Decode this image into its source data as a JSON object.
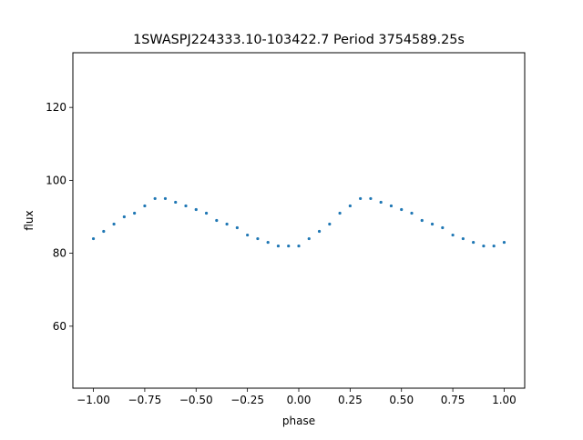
{
  "chart_data": {
    "type": "scatter",
    "title": "1SWASPJ224333.10-103422.7 Period 3754589.25s",
    "xlabel": "phase",
    "ylabel": "flux",
    "xlim": [
      -1.1,
      1.1
    ],
    "ylim": [
      43,
      135
    ],
    "x_ticks": [
      -1.0,
      -0.75,
      -0.5,
      -0.25,
      0.0,
      0.25,
      0.5,
      0.75,
      1.0
    ],
    "x_tick_labels": [
      "−1.00",
      "−0.75",
      "−0.50",
      "−0.25",
      "0.00",
      "0.25",
      "0.50",
      "0.75",
      "1.00"
    ],
    "y_ticks": [
      60,
      80,
      100,
      120
    ],
    "y_tick_labels": [
      "60",
      "80",
      "100",
      "120"
    ],
    "grid": false,
    "marker_color": "#1f77b4",
    "series": [
      {
        "x": [
          -1.0,
          -0.95,
          -0.9,
          -0.85,
          -0.8,
          -0.75,
          -0.7,
          -0.65,
          -0.6,
          -0.55,
          -0.5,
          -0.45,
          -0.4,
          -0.35,
          -0.3,
          -0.25,
          -0.2,
          -0.15,
          -0.1,
          -0.05,
          0.0,
          0.05,
          0.1,
          0.15,
          0.2,
          0.25,
          0.3,
          0.35,
          0.4,
          0.45,
          0.5,
          0.55,
          0.6,
          0.65,
          0.7,
          0.75,
          0.8,
          0.85,
          0.9,
          0.95,
          1.0
        ],
        "y": [
          84,
          86,
          88,
          90,
          91,
          93,
          95,
          95,
          94,
          93,
          92,
          91,
          89,
          88,
          87,
          85,
          84,
          83,
          82,
          82,
          82,
          84,
          86,
          88,
          91,
          93,
          95,
          95,
          94,
          93,
          92,
          91,
          89,
          88,
          87,
          85,
          84,
          83,
          82,
          82,
          83
        ]
      }
    ]
  }
}
